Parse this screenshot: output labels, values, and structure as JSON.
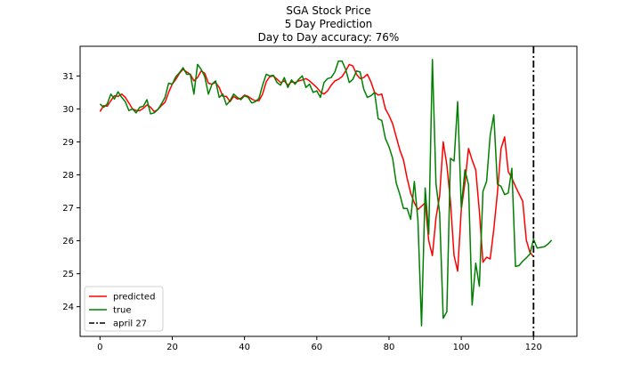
{
  "chart_data": {
    "type": "line",
    "title_lines": [
      "SGA Stock Price",
      "5 Day Prediction",
      "Day to Day accuracy: 76%"
    ],
    "xlabel": "",
    "ylabel": "",
    "xlim": [
      -5.5,
      132
    ],
    "ylim": [
      23.1,
      31.9
    ],
    "xticks": [
      0,
      20,
      40,
      60,
      80,
      100,
      120
    ],
    "yticks": [
      24,
      25,
      26,
      27,
      28,
      29,
      30,
      31
    ],
    "grid": false,
    "legend_placement": "lower-left",
    "series": [
      {
        "name": "predicted",
        "color": "#ff0000",
        "x_start": 0,
        "values": [
          29.92,
          30.1,
          30.08,
          30.25,
          30.4,
          30.38,
          30.45,
          30.35,
          30.18,
          30.0,
          29.95,
          29.95,
          30.02,
          30.12,
          30.05,
          29.92,
          29.98,
          30.1,
          30.2,
          30.5,
          30.75,
          30.9,
          31.08,
          31.2,
          31.12,
          31.05,
          30.85,
          30.95,
          31.15,
          31.08,
          30.78,
          30.75,
          30.8,
          30.65,
          30.38,
          30.38,
          30.22,
          30.38,
          30.3,
          30.32,
          30.42,
          30.38,
          30.3,
          30.25,
          30.25,
          30.45,
          30.82,
          30.98,
          31.0,
          30.9,
          30.8,
          30.85,
          30.72,
          30.82,
          30.8,
          30.85,
          30.88,
          30.92,
          30.85,
          30.75,
          30.65,
          30.52,
          30.45,
          30.55,
          30.72,
          30.85,
          30.9,
          30.98,
          31.15,
          31.35,
          31.3,
          31.05,
          30.92,
          30.95,
          31.05,
          30.82,
          30.5,
          30.42,
          30.45,
          30.0,
          29.8,
          29.55,
          29.15,
          28.75,
          28.45,
          27.9,
          27.45,
          27.15,
          26.95,
          27.05,
          27.15,
          26.0,
          25.55,
          26.7,
          27.35,
          29.0,
          28.3,
          27.2,
          25.55,
          25.08,
          26.95,
          27.75,
          28.8,
          28.45,
          28.15,
          26.9,
          25.35,
          25.5,
          25.45,
          26.35,
          27.45,
          28.8,
          29.15,
          28.1,
          27.9,
          27.65,
          27.42,
          27.2,
          26.02,
          25.65,
          25.52
        ]
      },
      {
        "name": "true",
        "color": "#008000",
        "x_start": 0,
        "values": [
          30.15,
          30.05,
          30.15,
          30.45,
          30.3,
          30.52,
          30.35,
          30.22,
          29.95,
          30.0,
          29.88,
          30.05,
          30.08,
          30.28,
          29.85,
          29.88,
          29.98,
          30.15,
          30.35,
          30.78,
          30.75,
          30.98,
          31.1,
          31.25,
          31.05,
          31.05,
          30.45,
          31.35,
          31.2,
          30.98,
          30.45,
          30.75,
          30.85,
          30.35,
          30.45,
          30.12,
          30.25,
          30.45,
          30.35,
          30.28,
          30.4,
          30.35,
          30.18,
          30.22,
          30.32,
          30.72,
          31.05,
          31.0,
          31.02,
          30.8,
          30.72,
          30.95,
          30.65,
          30.88,
          30.75,
          30.9,
          31.0,
          30.65,
          30.75,
          30.5,
          30.55,
          30.35,
          30.8,
          30.92,
          30.95,
          31.12,
          31.45,
          31.45,
          31.2,
          30.8,
          30.9,
          31.15,
          31.12,
          30.6,
          30.35,
          30.4,
          30.5,
          29.7,
          29.65,
          29.1,
          28.85,
          28.5,
          27.75,
          27.4,
          26.98,
          26.98,
          26.65,
          27.8,
          26.62,
          23.42,
          27.6,
          26.2,
          31.5,
          27.72,
          26.85,
          23.65,
          23.85,
          28.5,
          28.42,
          30.22,
          27.0,
          28.15,
          27.7,
          24.05,
          25.32,
          24.62,
          27.5,
          27.8,
          29.2,
          29.82,
          27.72,
          27.65,
          27.4,
          27.45,
          28.2,
          25.22,
          25.25,
          25.38,
          25.48,
          25.6,
          26.05,
          25.78,
          25.8,
          25.82,
          25.9,
          26.02
        ]
      }
    ],
    "vline": {
      "name": "april 27",
      "x": 120,
      "color": "#000000",
      "style": "dashdot"
    }
  }
}
